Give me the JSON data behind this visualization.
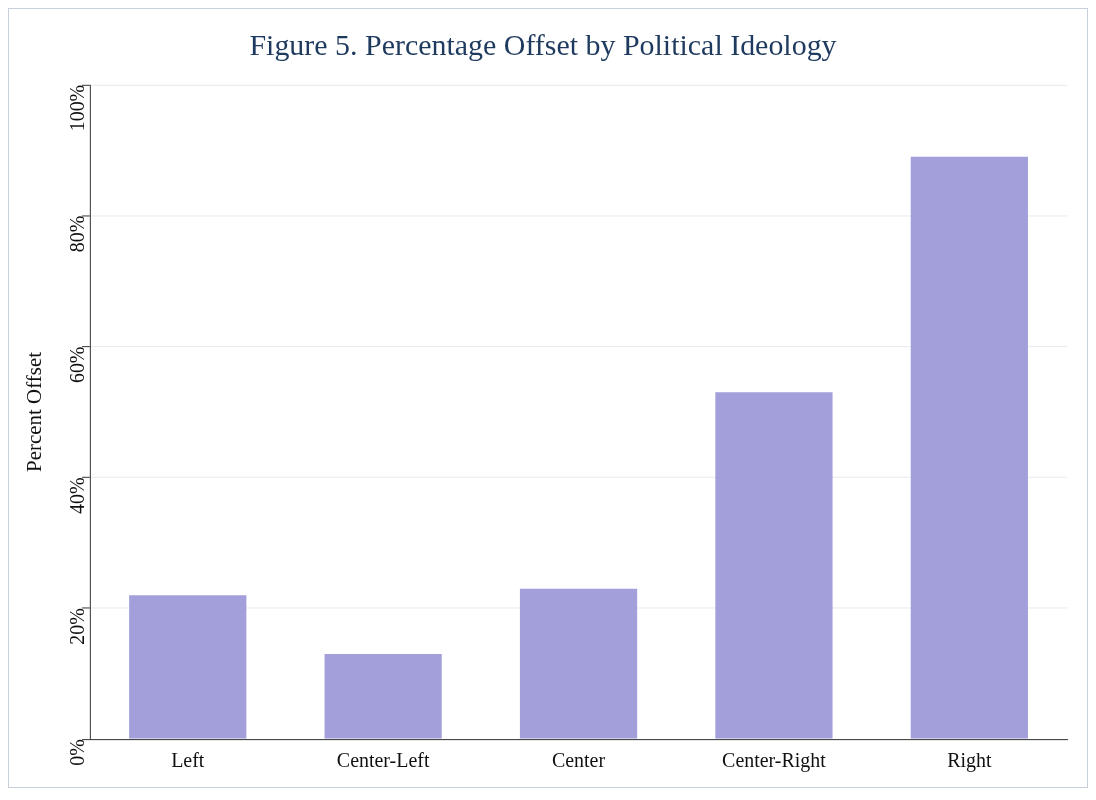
{
  "chart_data": {
    "type": "bar",
    "title": "Figure 5. Percentage Offset by Political Ideology",
    "ylabel": "Percent Offset",
    "categories": [
      "Left",
      "Center-Left",
      "Center",
      "Center-Right",
      "Right"
    ],
    "values": [
      22,
      13,
      23,
      53,
      89
    ],
    "color": "#a29fdb",
    "ylim": [
      0,
      100
    ],
    "yticks": [
      {
        "value": 0,
        "label": "0%"
      },
      {
        "value": 20,
        "label": "20%"
      },
      {
        "value": 40,
        "label": "40%"
      },
      {
        "value": 60,
        "label": "60%"
      },
      {
        "value": 80,
        "label": "80%"
      },
      {
        "value": 100,
        "label": "100%"
      }
    ],
    "grid": "y"
  }
}
